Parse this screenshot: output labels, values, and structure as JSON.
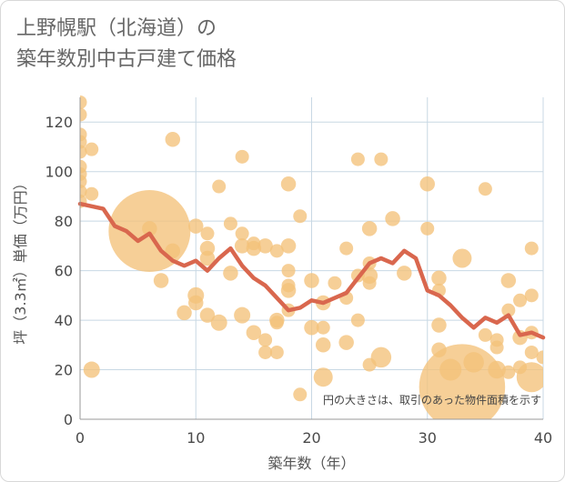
{
  "title": "上野幌駅（北海道）の\n築年数別中古戸建て価格",
  "chart_data": {
    "type": "scatter",
    "title": "上野幌駅（北海道）の\n築年数別中古戸建て価格",
    "xlabel": "築年数（年）",
    "ylabel": "坪（3.3㎡）単価（万円）",
    "xlim": [
      0,
      40
    ],
    "ylim": [
      0,
      130
    ],
    "xticks": [
      0,
      10,
      20,
      30,
      40
    ],
    "yticks": [
      0,
      20,
      40,
      60,
      80,
      100,
      120
    ],
    "grid": true,
    "annotation": "円の大きさは、取引のあった物件面積を示す",
    "colors": {
      "bubble": "#f3c27a",
      "line": "#d9674e",
      "grid": "#c8d8e4",
      "axis": "#999999"
    },
    "scatter": [
      {
        "x": 0,
        "y": 128,
        "s": 1
      },
      {
        "x": 0,
        "y": 123,
        "s": 1
      },
      {
        "x": 0,
        "y": 115,
        "s": 1
      },
      {
        "x": 0,
        "y": 112,
        "s": 1
      },
      {
        "x": 0,
        "y": 108,
        "s": 1
      },
      {
        "x": 0,
        "y": 102,
        "s": 1
      },
      {
        "x": 0,
        "y": 99,
        "s": 1
      },
      {
        "x": 0,
        "y": 96,
        "s": 1
      },
      {
        "x": 0,
        "y": 92,
        "s": 1
      },
      {
        "x": 0,
        "y": 88,
        "s": 1
      },
      {
        "x": 1,
        "y": 109,
        "s": 1
      },
      {
        "x": 1,
        "y": 91,
        "s": 1
      },
      {
        "x": 1,
        "y": 20,
        "s": 1.2
      },
      {
        "x": 6,
        "y": 76,
        "s": 6
      },
      {
        "x": 6,
        "y": 77,
        "s": 1.1
      },
      {
        "x": 7,
        "y": 56,
        "s": 1.1
      },
      {
        "x": 8,
        "y": 113,
        "s": 1.1
      },
      {
        "x": 8,
        "y": 68,
        "s": 1.1
      },
      {
        "x": 9,
        "y": 43,
        "s": 1.1
      },
      {
        "x": 10,
        "y": 78,
        "s": 1.1
      },
      {
        "x": 10,
        "y": 50,
        "s": 1.2
      },
      {
        "x": 10,
        "y": 47,
        "s": 1.1
      },
      {
        "x": 11,
        "y": 75,
        "s": 1
      },
      {
        "x": 11,
        "y": 69,
        "s": 1.1
      },
      {
        "x": 11,
        "y": 65,
        "s": 1.1
      },
      {
        "x": 11,
        "y": 42,
        "s": 1.1
      },
      {
        "x": 12,
        "y": 94,
        "s": 1
      },
      {
        "x": 12,
        "y": 39,
        "s": 1.2
      },
      {
        "x": 13,
        "y": 79,
        "s": 1
      },
      {
        "x": 13,
        "y": 59,
        "s": 1.1
      },
      {
        "x": 14,
        "y": 106,
        "s": 1
      },
      {
        "x": 14,
        "y": 75,
        "s": 1
      },
      {
        "x": 14,
        "y": 70,
        "s": 1.1
      },
      {
        "x": 14,
        "y": 42,
        "s": 1.2
      },
      {
        "x": 15,
        "y": 71,
        "s": 1
      },
      {
        "x": 15,
        "y": 69,
        "s": 1.1
      },
      {
        "x": 15,
        "y": 35,
        "s": 1.1
      },
      {
        "x": 16,
        "y": 70,
        "s": 1.1
      },
      {
        "x": 16,
        "y": 32,
        "s": 1
      },
      {
        "x": 16,
        "y": 27,
        "s": 1
      },
      {
        "x": 17,
        "y": 68,
        "s": 1
      },
      {
        "x": 17,
        "y": 40,
        "s": 1.1
      },
      {
        "x": 17,
        "y": 39,
        "s": 1
      },
      {
        "x": 17,
        "y": 27,
        "s": 1
      },
      {
        "x": 18,
        "y": 95,
        "s": 1.1
      },
      {
        "x": 18,
        "y": 70,
        "s": 1.1
      },
      {
        "x": 18,
        "y": 60,
        "s": 1
      },
      {
        "x": 18,
        "y": 54,
        "s": 1
      },
      {
        "x": 18,
        "y": 52,
        "s": 1.1
      },
      {
        "x": 18,
        "y": 44,
        "s": 1
      },
      {
        "x": 19,
        "y": 82,
        "s": 1
      },
      {
        "x": 19,
        "y": 10,
        "s": 1
      },
      {
        "x": 20,
        "y": 56,
        "s": 1.1
      },
      {
        "x": 20,
        "y": 37,
        "s": 1.1
      },
      {
        "x": 21,
        "y": 47,
        "s": 1.1
      },
      {
        "x": 21,
        "y": 37,
        "s": 1
      },
      {
        "x": 21,
        "y": 30,
        "s": 1.1
      },
      {
        "x": 21,
        "y": 17,
        "s": 1.4
      },
      {
        "x": 22,
        "y": 55,
        "s": 1
      },
      {
        "x": 23,
        "y": 69,
        "s": 1
      },
      {
        "x": 23,
        "y": 49,
        "s": 1
      },
      {
        "x": 23,
        "y": 31,
        "s": 1.1
      },
      {
        "x": 24,
        "y": 105,
        "s": 1
      },
      {
        "x": 24,
        "y": 58,
        "s": 1
      },
      {
        "x": 24,
        "y": 40,
        "s": 1
      },
      {
        "x": 25,
        "y": 77,
        "s": 1.1
      },
      {
        "x": 25,
        "y": 63,
        "s": 1
      },
      {
        "x": 25,
        "y": 58,
        "s": 1.2
      },
      {
        "x": 25,
        "y": 55,
        "s": 1
      },
      {
        "x": 25,
        "y": 22,
        "s": 1
      },
      {
        "x": 26,
        "y": 105,
        "s": 1
      },
      {
        "x": 26,
        "y": 25,
        "s": 1.5
      },
      {
        "x": 27,
        "y": 81,
        "s": 1.1
      },
      {
        "x": 28,
        "y": 59,
        "s": 1.1
      },
      {
        "x": 30,
        "y": 95,
        "s": 1.1
      },
      {
        "x": 30,
        "y": 77,
        "s": 1
      },
      {
        "x": 31,
        "y": 57,
        "s": 1.1
      },
      {
        "x": 31,
        "y": 52,
        "s": 1
      },
      {
        "x": 31,
        "y": 38,
        "s": 1.1
      },
      {
        "x": 31,
        "y": 28,
        "s": 1.1
      },
      {
        "x": 33,
        "y": 13,
        "s": 6.3
      },
      {
        "x": 32,
        "y": 20,
        "s": 1.6
      },
      {
        "x": 33,
        "y": 65,
        "s": 1.4
      },
      {
        "x": 34,
        "y": 23,
        "s": 1.5
      },
      {
        "x": 35,
        "y": 93,
        "s": 1
      },
      {
        "x": 35,
        "y": 34,
        "s": 1
      },
      {
        "x": 36,
        "y": 32,
        "s": 1
      },
      {
        "x": 36,
        "y": 29,
        "s": 1
      },
      {
        "x": 36,
        "y": 20,
        "s": 1.3
      },
      {
        "x": 37,
        "y": 56,
        "s": 1.1
      },
      {
        "x": 37,
        "y": 44,
        "s": 1
      },
      {
        "x": 37,
        "y": 19,
        "s": 1
      },
      {
        "x": 38,
        "y": 48,
        "s": 1
      },
      {
        "x": 38,
        "y": 33,
        "s": 1.1
      },
      {
        "x": 38,
        "y": 21,
        "s": 1
      },
      {
        "x": 39,
        "y": 69,
        "s": 1
      },
      {
        "x": 39,
        "y": 50,
        "s": 1
      },
      {
        "x": 39,
        "y": 35,
        "s": 1
      },
      {
        "x": 39,
        "y": 27,
        "s": 1
      },
      {
        "x": 39,
        "y": 17,
        "s": 2.2
      },
      {
        "x": 40,
        "y": 25,
        "s": 1
      }
    ],
    "line": {
      "x": [
        0,
        1,
        2,
        3,
        4,
        5,
        6,
        7,
        8,
        9,
        10,
        11,
        12,
        13,
        14,
        15,
        16,
        17,
        18,
        19,
        20,
        21,
        22,
        23,
        24,
        25,
        26,
        27,
        28,
        29,
        30,
        31,
        32,
        33,
        34,
        35,
        36,
        37,
        38,
        39,
        40
      ],
      "y": [
        87,
        86,
        85,
        78,
        76,
        72,
        75,
        68,
        64,
        62,
        64,
        60,
        65,
        69,
        62,
        57,
        54,
        49,
        44,
        45,
        48,
        47,
        49,
        51,
        57,
        63,
        65,
        63,
        68,
        65,
        52,
        50,
        46,
        41,
        37,
        41,
        39,
        42,
        34,
        35,
        33
      ]
    }
  }
}
